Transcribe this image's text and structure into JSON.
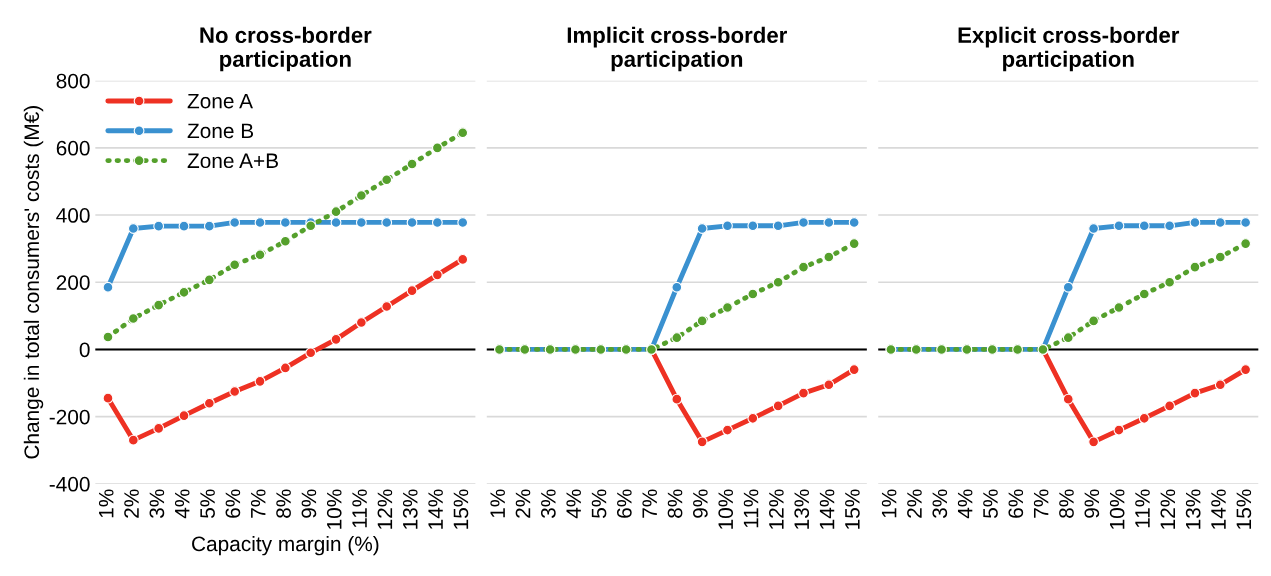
{
  "chart_data": [
    {
      "type": "line",
      "title": "No cross-border\nparticipation",
      "xlabel": "Capacity margin (%)",
      "ylabel": "Change in total consumers' costs (M€)",
      "categories": [
        "1%",
        "2%",
        "3%",
        "4%",
        "5%",
        "6%",
        "7%",
        "8%",
        "9%",
        "10%",
        "11%",
        "12%",
        "13%",
        "14%",
        "15%"
      ],
      "ylim": [
        -400,
        800
      ],
      "yticks": [
        -400,
        -200,
        0,
        200,
        400,
        600,
        800
      ],
      "grid": "y",
      "legend": "top left",
      "marker": "circle",
      "ref_lines": [
        {
          "axis": "y",
          "value": 0,
          "color": "#000000"
        }
      ],
      "series": [
        {
          "name": "Zone A",
          "color": "#ee3123",
          "line_style": "solid",
          "values": [
            -145,
            -270,
            -235,
            -197,
            -160,
            -125,
            -95,
            -55,
            -10,
            30,
            80,
            128,
            175,
            222,
            268
          ]
        },
        {
          "name": "Zone B",
          "color": "#3a91d0",
          "line_style": "solid",
          "values": [
            185,
            360,
            367,
            367,
            367,
            378,
            378,
            378,
            378,
            378,
            378,
            378,
            378,
            378,
            378
          ]
        },
        {
          "name": "Zone A+B",
          "color": "#55a02c",
          "line_style": "dotted",
          "values": [
            37,
            92,
            132,
            170,
            207,
            252,
            282,
            322,
            368,
            410,
            458,
            505,
            552,
            600,
            645
          ]
        }
      ]
    },
    {
      "type": "line",
      "title": "Implicit cross-border\nparticipation",
      "categories": [
        "1%",
        "2%",
        "3%",
        "4%",
        "5%",
        "6%",
        "7%",
        "8%",
        "9%",
        "10%",
        "11%",
        "12%",
        "13%",
        "14%",
        "15%"
      ],
      "ylim": [
        -400,
        800
      ],
      "yticks": [
        -400,
        -200,
        0,
        200,
        400,
        600,
        800
      ],
      "grid": "y",
      "marker": "circle",
      "tick_labels": "x",
      "ref_lines": [
        {
          "axis": "y",
          "value": 0,
          "color": "#000000"
        }
      ],
      "series": [
        {
          "color": "#ee3123",
          "line_style": "solid",
          "values": [
            null,
            null,
            null,
            null,
            null,
            null,
            0,
            -148,
            -275,
            -240,
            -205,
            -168,
            -130,
            -105,
            -60
          ]
        },
        {
          "color": "#3a91d0",
          "line_style": "solid",
          "values": [
            0,
            0,
            0,
            0,
            0,
            0,
            0,
            185,
            360,
            368,
            368,
            368,
            378,
            378,
            378
          ]
        },
        {
          "color": "#55a02c",
          "line_style": "dotted",
          "values": [
            0,
            0,
            0,
            0,
            0,
            0,
            0,
            35,
            85,
            125,
            165,
            200,
            245,
            275,
            315
          ]
        }
      ]
    },
    {
      "type": "line",
      "title": "Explicit cross-border\nparticipation",
      "categories": [
        "1%",
        "2%",
        "3%",
        "4%",
        "5%",
        "6%",
        "7%",
        "8%",
        "9%",
        "10%",
        "11%",
        "12%",
        "13%",
        "14%",
        "15%"
      ],
      "ylim": [
        -400,
        800
      ],
      "yticks": [
        -400,
        -200,
        0,
        200,
        400,
        600,
        800
      ],
      "grid": "y",
      "marker": "circle",
      "tick_labels": "x",
      "ref_lines": [
        {
          "axis": "y",
          "value": 0,
          "color": "#000000"
        }
      ],
      "series": [
        {
          "color": "#ee3123",
          "line_style": "solid",
          "values": [
            null,
            null,
            null,
            null,
            null,
            null,
            0,
            -148,
            -275,
            -240,
            -205,
            -168,
            -130,
            -105,
            -60
          ]
        },
        {
          "color": "#3a91d0",
          "line_style": "solid",
          "values": [
            0,
            0,
            0,
            0,
            0,
            0,
            0,
            185,
            360,
            368,
            368,
            368,
            378,
            378,
            378
          ]
        },
        {
          "color": "#55a02c",
          "line_style": "dotted",
          "values": [
            0,
            0,
            0,
            0,
            0,
            0,
            0,
            35,
            85,
            125,
            165,
            200,
            245,
            275,
            315
          ]
        }
      ]
    }
  ]
}
